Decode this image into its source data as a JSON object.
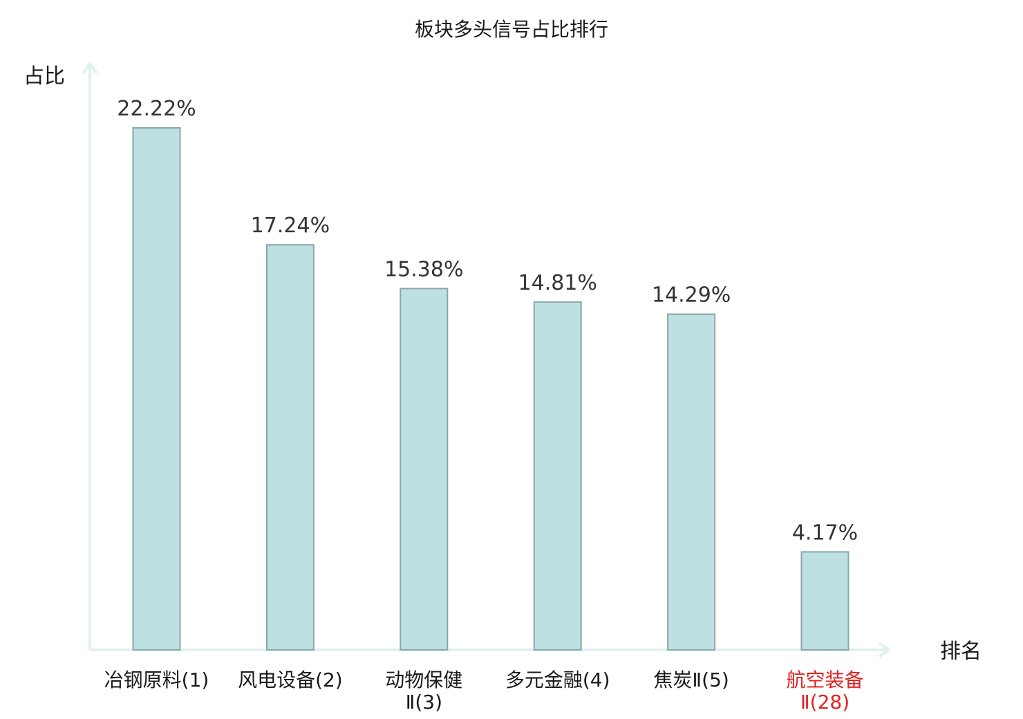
{
  "chart_data": {
    "type": "bar",
    "title": "板块多头信号占比排行",
    "ylabel": "占比",
    "xlabel": "排名",
    "categories": [
      {
        "lines": [
          "冶钢原料(1)"
        ],
        "highlight": false
      },
      {
        "lines": [
          "风电设备(2)"
        ],
        "highlight": false
      },
      {
        "lines": [
          "动物保健",
          "Ⅱ(3)"
        ],
        "highlight": false
      },
      {
        "lines": [
          "多元金融(4)"
        ],
        "highlight": false
      },
      {
        "lines": [
          "焦炭Ⅱ(5)"
        ],
        "highlight": false
      },
      {
        "lines": [
          "航空装备",
          "Ⅱ(28)"
        ],
        "highlight": true
      }
    ],
    "values": [
      22.22,
      17.24,
      15.38,
      14.81,
      14.29,
      4.17
    ],
    "value_labels": [
      "22.22%",
      "17.24%",
      "15.38%",
      "14.81%",
      "14.29%",
      "4.17%"
    ],
    "ylim": [
      0,
      22.22
    ],
    "grid": false,
    "colors": {
      "bar_fill": "#bde0e2",
      "bar_stroke": "#8aa6a8",
      "axis": "#dff2ef",
      "highlight": "#e32020"
    }
  }
}
